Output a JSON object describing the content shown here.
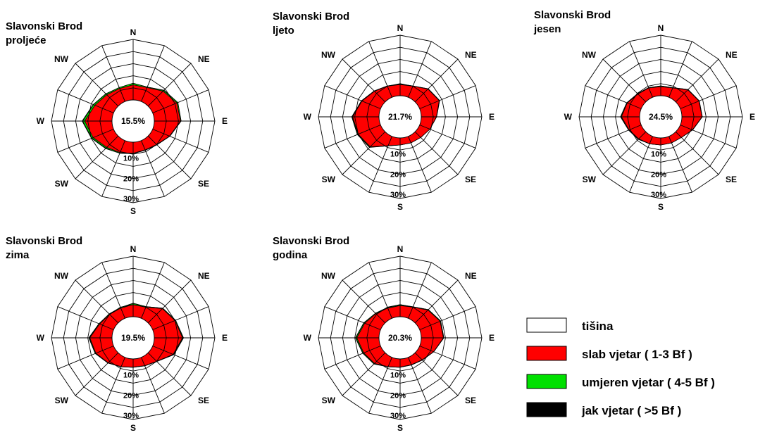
{
  "chart_data": [
    {
      "type": "wind-rose",
      "title_lines": [
        "Slavonski Brod",
        "proljeće"
      ],
      "calm_label": "15.5%",
      "directions": [
        "N",
        "NNE",
        "NE",
        "ENE",
        "E",
        "ESE",
        "SE",
        "SSE",
        "S",
        "SSW",
        "SW",
        "WSW",
        "W",
        "WNW",
        "NW",
        "NNW"
      ],
      "series": [
        {
          "key": "slab",
          "values": [
            7.5,
            7.5,
            10.5,
            13.0,
            13.0,
            9.0,
            6.0,
            5.0,
            5.5,
            6.5,
            8.0,
            11.0,
            13.5,
            10.0,
            8.0,
            7.0
          ]
        },
        {
          "key": "umjeren",
          "values": [
            0.8,
            0.3,
            0.5,
            0.5,
            0.3,
            0.2,
            0.2,
            0.2,
            0.2,
            0.3,
            0.6,
            0.7,
            1.0,
            0.8,
            0.6,
            0.5
          ]
        },
        {
          "key": "jak",
          "values": [
            0,
            0,
            0.2,
            0,
            0,
            0,
            0,
            0,
            0,
            0,
            0.2,
            0.2,
            0.3,
            0.2,
            0.1,
            0
          ]
        }
      ]
    },
    {
      "type": "wind-rose",
      "title_lines": [
        "Slavonski Brod",
        "ljeto"
      ],
      "calm_label": "21.7%",
      "directions": [
        "N",
        "NNE",
        "NE",
        "ENE",
        "E",
        "ESE",
        "SE",
        "SSE",
        "S",
        "SSW",
        "SW",
        "WSW",
        "W",
        "WNW",
        "NW",
        "NNW"
      ],
      "series": [
        {
          "key": "slab",
          "values": [
            5.5,
            6.0,
            9.0,
            10.5,
            7.5,
            5.5,
            4.0,
            3.5,
            3.5,
            5.0,
            10.5,
            12.0,
            13.0,
            10.0,
            7.5,
            6.0
          ]
        },
        {
          "key": "umjeren",
          "values": [
            0.2,
            0.1,
            0.2,
            0.2,
            0.1,
            0,
            0,
            0,
            0,
            0.1,
            0.3,
            0.3,
            0.3,
            0.2,
            0.2,
            0.1
          ]
        },
        {
          "key": "jak",
          "values": [
            0.1,
            0,
            0,
            0,
            0,
            0,
            0,
            0,
            0,
            0,
            0.2,
            0.2,
            0.2,
            0.1,
            0,
            0
          ]
        }
      ]
    },
    {
      "type": "wind-rose",
      "title_lines": [
        "Slavonski Brod",
        "jesen"
      ],
      "calm_label": "24.5%",
      "directions": [
        "N",
        "NNE",
        "NE",
        "ENE",
        "E",
        "ESE",
        "SE",
        "SSE",
        "S",
        "SSW",
        "SW",
        "WSW",
        "W",
        "WNW",
        "NW",
        "NNW"
      ],
      "series": [
        {
          "key": "slab",
          "values": [
            4.5,
            5.0,
            8.5,
            10.0,
            10.0,
            6.5,
            4.0,
            3.5,
            3.5,
            4.0,
            5.0,
            6.5,
            9.0,
            7.5,
            5.5,
            5.0
          ]
        },
        {
          "key": "umjeren",
          "values": [
            0.3,
            0.2,
            0.2,
            0.2,
            0.1,
            0.1,
            0,
            0,
            0,
            0,
            0.2,
            0.2,
            0.3,
            0.2,
            0.2,
            0.2
          ]
        },
        {
          "key": "jak",
          "values": [
            0.1,
            0,
            0,
            0,
            0,
            0,
            0,
            0,
            0,
            0,
            0.1,
            0.1,
            0.2,
            0.1,
            0.1,
            0
          ]
        }
      ]
    },
    {
      "type": "wind-rose",
      "title_lines": [
        "Slavonski Brod",
        "zima"
      ],
      "calm_label": "19.5%",
      "directions": [
        "N",
        "NNE",
        "NE",
        "ENE",
        "E",
        "ESE",
        "SE",
        "SSE",
        "S",
        "SSW",
        "SW",
        "WSW",
        "W",
        "WNW",
        "NW",
        "NNW"
      ],
      "series": [
        {
          "key": "slab",
          "values": [
            6.0,
            6.0,
            10.0,
            12.0,
            14.0,
            11.0,
            6.0,
            4.5,
            4.0,
            5.0,
            7.0,
            9.5,
            11.0,
            7.5,
            6.0,
            5.5
          ]
        },
        {
          "key": "umjeren",
          "values": [
            0.6,
            0.3,
            0.3,
            0.3,
            0.3,
            0.2,
            0.1,
            0.1,
            0.1,
            0.1,
            0.2,
            0.3,
            0.3,
            0.3,
            0.3,
            0.3
          ]
        },
        {
          "key": "jak",
          "values": [
            0.1,
            0,
            0,
            0,
            0.2,
            0.2,
            0,
            0,
            0,
            0,
            0,
            0.1,
            0.2,
            0.1,
            0,
            0
          ]
        }
      ]
    },
    {
      "type": "wind-rose",
      "title_lines": [
        "Slavonski Brod",
        "godina"
      ],
      "calm_label": "20.3%",
      "directions": [
        "N",
        "NNE",
        "NE",
        "ENE",
        "E",
        "ESE",
        "SE",
        "SSE",
        "S",
        "SSW",
        "SW",
        "WSW",
        "W",
        "WNW",
        "NW",
        "NNW"
      ],
      "series": [
        {
          "key": "slab",
          "values": [
            5.5,
            6.0,
            9.0,
            11.0,
            11.0,
            7.5,
            5.0,
            4.0,
            4.0,
            5.0,
            7.5,
            9.0,
            11.0,
            8.5,
            6.5,
            5.5
          ]
        },
        {
          "key": "umjeren",
          "values": [
            0.4,
            0.2,
            0.3,
            0.3,
            0.2,
            0.1,
            0.1,
            0.1,
            0.1,
            0.1,
            0.3,
            0.4,
            0.5,
            0.4,
            0.3,
            0.3
          ]
        },
        {
          "key": "jak",
          "values": [
            0.1,
            0,
            0,
            0,
            0,
            0,
            0,
            0,
            0,
            0,
            0.1,
            0.2,
            0.2,
            0.1,
            0,
            0
          ]
        }
      ]
    }
  ],
  "axis": {
    "compass_labels": [
      "N",
      "NE",
      "E",
      "SE",
      "S",
      "SW",
      "W",
      "NW"
    ],
    "ring_values": [
      10,
      20,
      30
    ],
    "ring_labels": [
      "10%",
      "20%",
      "30%"
    ],
    "rmax": 30
  },
  "legend": [
    {
      "key": "tisina",
      "label": "tišina",
      "color": "#ffffff"
    },
    {
      "key": "slab",
      "label": "slab vjetar ( 1-3 Bf )",
      "color": "#ff0000"
    },
    {
      "key": "umjeren",
      "label": "umjeren vjetar ( 4-5 Bf )",
      "color": "#00e000"
    },
    {
      "key": "jak",
      "label": "jak vjetar ( >5 Bf )",
      "color": "#000000"
    }
  ]
}
